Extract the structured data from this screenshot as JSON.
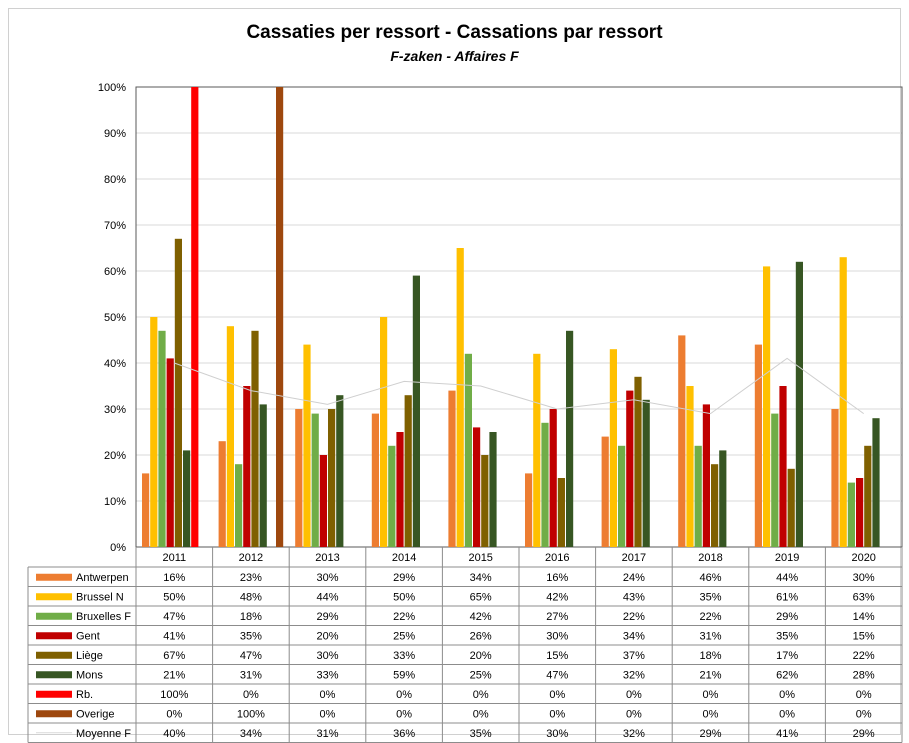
{
  "chart_data": {
    "type": "bar",
    "title": "Cassaties per ressort - Cassations par ressort",
    "subtitle": "F-zaken - Affaires F",
    "categories": [
      "2011",
      "2012",
      "2013",
      "2014",
      "2015",
      "2016",
      "2017",
      "2018",
      "2019",
      "2020"
    ],
    "ylim": [
      0,
      100
    ],
    "yticks": [
      "0%",
      "10%",
      "20%",
      "30%",
      "40%",
      "50%",
      "60%",
      "70%",
      "80%",
      "90%",
      "100%"
    ],
    "grid": true,
    "legend": "data-table-below",
    "series": [
      {
        "name": "Antwerpen",
        "kind": "bar",
        "color": "#ED7D31",
        "values": [
          16,
          23,
          30,
          29,
          34,
          16,
          24,
          46,
          44,
          30
        ]
      },
      {
        "name": "Brussel N",
        "kind": "bar",
        "color": "#FFC000",
        "values": [
          50,
          48,
          44,
          50,
          65,
          42,
          43,
          35,
          61,
          63
        ]
      },
      {
        "name": "Bruxelles F",
        "kind": "bar",
        "color": "#70AD47",
        "values": [
          47,
          18,
          29,
          22,
          42,
          27,
          22,
          22,
          29,
          14
        ]
      },
      {
        "name": "Gent",
        "kind": "bar",
        "color": "#C00000",
        "values": [
          41,
          35,
          20,
          25,
          26,
          30,
          34,
          31,
          35,
          15
        ]
      },
      {
        "name": "Liège",
        "kind": "bar",
        "color": "#7F6000",
        "values": [
          67,
          47,
          30,
          33,
          20,
          15,
          37,
          18,
          17,
          22
        ]
      },
      {
        "name": "Mons",
        "kind": "bar",
        "color": "#375623",
        "values": [
          21,
          31,
          33,
          59,
          25,
          47,
          32,
          21,
          62,
          28
        ]
      },
      {
        "name": "Rb.",
        "kind": "bar",
        "color": "#FF0000",
        "values": [
          100,
          0,
          0,
          0,
          0,
          0,
          0,
          0,
          0,
          0
        ]
      },
      {
        "name": "Overige",
        "kind": "bar",
        "color": "#9E480E",
        "values": [
          0,
          100,
          0,
          0,
          0,
          0,
          0,
          0,
          0,
          0
        ]
      },
      {
        "name": "Moyenne F",
        "kind": "line",
        "color": "#D9D9D9",
        "values": [
          40,
          34,
          31,
          36,
          35,
          30,
          32,
          29,
          41,
          29
        ]
      }
    ]
  }
}
